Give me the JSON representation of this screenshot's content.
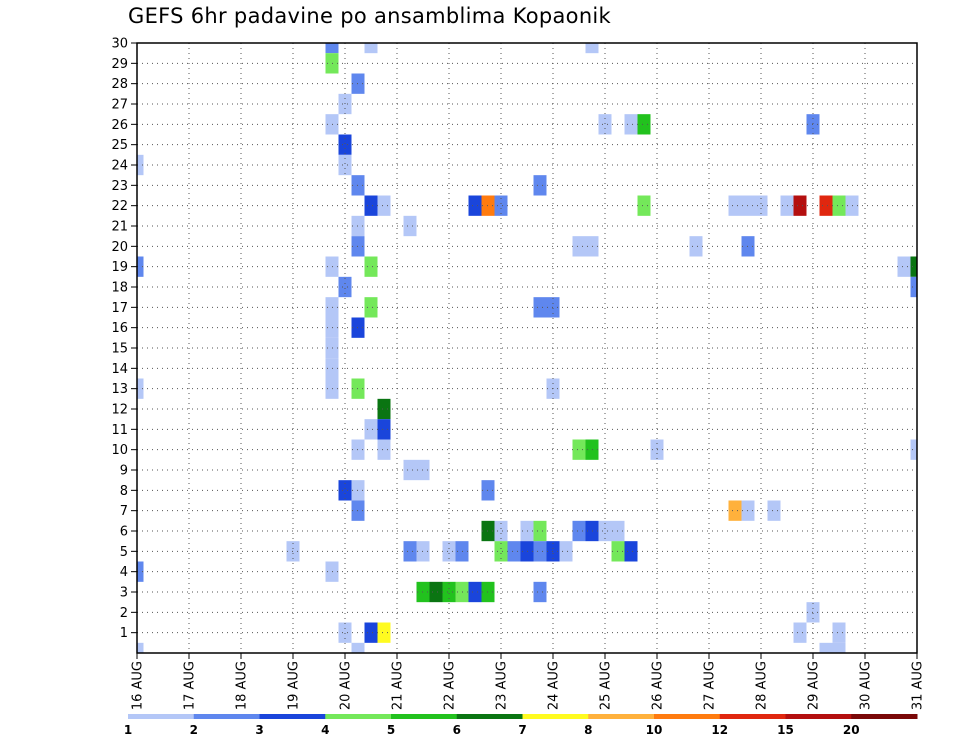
{
  "chart_data": {
    "type": "heatmap",
    "title": "GEFS 6hr padavine po ansamblima Kopaonik",
    "xlabel": "",
    "ylabel": "",
    "x_tick_labels": [
      "16 AUG",
      "17 AUG",
      "18 AUG",
      "19 AUG",
      "20 AUG",
      "21 AUG",
      "22 AUG",
      "23 AUG",
      "24 AUG",
      "25 AUG",
      "26 AUG",
      "27 AUG",
      "28 AUG",
      "29 AUG",
      "30 AUG",
      "31 AUG"
    ],
    "x_step": "6hr",
    "y_tick_labels": [
      1,
      2,
      3,
      4,
      5,
      6,
      7,
      8,
      9,
      10,
      11,
      12,
      13,
      14,
      15,
      16,
      17,
      18,
      19,
      20,
      21,
      22,
      23,
      24,
      25,
      26,
      27,
      28,
      29,
      30
    ],
    "ylim": [
      0,
      30
    ],
    "grid": true,
    "colorbar": {
      "position": "bottom",
      "labels": [
        "1",
        "2",
        "3",
        "4",
        "5",
        "6",
        "7",
        "8",
        "10",
        "12",
        "15",
        "20"
      ],
      "colors": [
        "#b4c7f7",
        "#5f87ee",
        "#1a45db",
        "#74e85a",
        "#22c21e",
        "#0a7512",
        "#fffb20",
        "#ffb13c",
        "#ff7b0f",
        "#e0270f",
        "#b40f0f",
        "#7a0808"
      ]
    },
    "cells": [
      {
        "date": "16 AUG",
        "step": 0,
        "member": 24,
        "color": "#b4c7f7"
      },
      {
        "date": "16 AUG",
        "step": 0,
        "member": 19,
        "color": "#5f87ee"
      },
      {
        "date": "16 AUG",
        "step": 0,
        "member": 13,
        "color": "#b4c7f7"
      },
      {
        "date": "16 AUG",
        "step": 0,
        "member": 4,
        "color": "#5f87ee"
      },
      {
        "date": "16 AUG",
        "step": 0,
        "member": 0,
        "color": "#b4c7f7"
      },
      {
        "date": "19 AUG",
        "step": 0,
        "member": 5,
        "color": "#b4c7f7"
      },
      {
        "date": "19 AUG",
        "step": 3,
        "member": 30,
        "color": "#5f87ee"
      },
      {
        "date": "19 AUG",
        "step": 3,
        "member": 26,
        "color": "#b4c7f7"
      },
      {
        "date": "19 AUG",
        "step": 3,
        "member": 19,
        "color": "#b4c7f7"
      },
      {
        "date": "19 AUG",
        "step": 3,
        "member": 17,
        "color": "#b4c7f7"
      },
      {
        "date": "19 AUG",
        "step": 3,
        "member": 16,
        "color": "#b4c7f7"
      },
      {
        "date": "19 AUG",
        "step": 3,
        "member": 15,
        "color": "#b4c7f7"
      },
      {
        "date": "19 AUG",
        "step": 3,
        "member": 14,
        "color": "#b4c7f7"
      },
      {
        "date": "19 AUG",
        "step": 3,
        "member": 13,
        "color": "#b4c7f7"
      },
      {
        "date": "19 AUG",
        "step": 3,
        "member": 4,
        "color": "#b4c7f7"
      },
      {
        "date": "19 AUG",
        "step": 3,
        "member": 29,
        "color": "#74e85a"
      },
      {
        "date": "20 AUG",
        "step": 0,
        "member": 27,
        "color": "#b4c7f7"
      },
      {
        "date": "20 AUG",
        "step": 0,
        "member": 25,
        "color": "#1a45db"
      },
      {
        "date": "20 AUG",
        "step": 0,
        "member": 24,
        "color": "#b4c7f7"
      },
      {
        "date": "20 AUG",
        "step": 0,
        "member": 18,
        "color": "#5f87ee"
      },
      {
        "date": "20 AUG",
        "step": 0,
        "member": 8,
        "color": "#1a45db"
      },
      {
        "date": "20 AUG",
        "step": 0,
        "member": 1,
        "color": "#b4c7f7"
      },
      {
        "date": "20 AUG",
        "step": 1,
        "member": 28,
        "color": "#5f87ee"
      },
      {
        "date": "20 AUG",
        "step": 1,
        "member": 23,
        "color": "#5f87ee"
      },
      {
        "date": "20 AUG",
        "step": 1,
        "member": 21,
        "color": "#b4c7f7"
      },
      {
        "date": "20 AUG",
        "step": 1,
        "member": 20,
        "color": "#5f87ee"
      },
      {
        "date": "20 AUG",
        "step": 1,
        "member": 16,
        "color": "#1a45db"
      },
      {
        "date": "20 AUG",
        "step": 1,
        "member": 13,
        "color": "#74e85a"
      },
      {
        "date": "20 AUG",
        "step": 1,
        "member": 10,
        "color": "#b4c7f7"
      },
      {
        "date": "20 AUG",
        "step": 1,
        "member": 8,
        "color": "#b4c7f7"
      },
      {
        "date": "20 AUG",
        "step": 1,
        "member": 7,
        "color": "#5f87ee"
      },
      {
        "date": "20 AUG",
        "step": 1,
        "member": 0,
        "color": "#b4c7f7"
      },
      {
        "date": "20 AUG",
        "step": 2,
        "member": 30,
        "color": "#b4c7f7"
      },
      {
        "date": "20 AUG",
        "step": 2,
        "member": 22,
        "color": "#1a45db"
      },
      {
        "date": "20 AUG",
        "step": 2,
        "member": 19,
        "color": "#74e85a"
      },
      {
        "date": "20 AUG",
        "step": 2,
        "member": 17,
        "color": "#74e85a"
      },
      {
        "date": "20 AUG",
        "step": 2,
        "member": 11,
        "color": "#b4c7f7"
      },
      {
        "date": "20 AUG",
        "step": 2,
        "member": 1,
        "color": "#1a45db"
      },
      {
        "date": "20 AUG",
        "step": 3,
        "member": 22,
        "color": "#b4c7f7"
      },
      {
        "date": "20 AUG",
        "step": 3,
        "member": 12,
        "color": "#0a7512"
      },
      {
        "date": "20 AUG",
        "step": 3,
        "member": 11,
        "color": "#1a45db"
      },
      {
        "date": "20 AUG",
        "step": 3,
        "member": 10,
        "color": "#b4c7f7"
      },
      {
        "date": "20 AUG",
        "step": 3,
        "member": 1,
        "color": "#fffb20"
      },
      {
        "date": "21 AUG",
        "step": 1,
        "member": 21,
        "color": "#b4c7f7"
      },
      {
        "date": "21 AUG",
        "step": 1,
        "member": 9,
        "color": "#b4c7f7"
      },
      {
        "date": "21 AUG",
        "step": 2,
        "member": 9,
        "color": "#b4c7f7"
      },
      {
        "date": "21 AUG",
        "step": 1,
        "member": 5,
        "color": "#5f87ee"
      },
      {
        "date": "21 AUG",
        "step": 2,
        "member": 5,
        "color": "#b4c7f7"
      },
      {
        "date": "21 AUG",
        "step": 2,
        "member": 3,
        "color": "#22c21e"
      },
      {
        "date": "21 AUG",
        "step": 3,
        "member": 3,
        "color": "#0a7512"
      },
      {
        "date": "22 AUG",
        "step": 0,
        "member": 3,
        "color": "#22c21e"
      },
      {
        "date": "22 AUG",
        "step": 1,
        "member": 3,
        "color": "#74e85a"
      },
      {
        "date": "22 AUG",
        "step": 2,
        "member": 3,
        "color": "#1a45db"
      },
      {
        "date": "22 AUG",
        "step": 3,
        "member": 3,
        "color": "#22c21e"
      },
      {
        "date": "22 AUG",
        "step": 0,
        "member": 5,
        "color": "#b4c7f7"
      },
      {
        "date": "22 AUG",
        "step": 1,
        "member": 5,
        "color": "#5f87ee"
      },
      {
        "date": "22 AUG",
        "step": 2,
        "member": 22,
        "color": "#1a45db"
      },
      {
        "date": "22 AUG",
        "step": 3,
        "member": 22,
        "color": "#ff7b0f"
      },
      {
        "date": "22 AUG",
        "step": 3,
        "member": 8,
        "color": "#5f87ee"
      },
      {
        "date": "22 AUG",
        "step": 3,
        "member": 6,
        "color": "#0a7512"
      },
      {
        "date": "23 AUG",
        "step": 0,
        "member": 22,
        "color": "#5f87ee"
      },
      {
        "date": "23 AUG",
        "step": 0,
        "member": 6,
        "color": "#b4c7f7"
      },
      {
        "date": "23 AUG",
        "step": 0,
        "member": 5,
        "color": "#74e85a"
      },
      {
        "date": "23 AUG",
        "step": 1,
        "member": 5,
        "color": "#5f87ee"
      },
      {
        "date": "23 AUG",
        "step": 2,
        "member": 6,
        "color": "#b4c7f7"
      },
      {
        "date": "23 AUG",
        "step": 2,
        "member": 5,
        "color": "#1a45db"
      },
      {
        "date": "23 AUG",
        "step": 3,
        "member": 23,
        "color": "#5f87ee"
      },
      {
        "date": "23 AUG",
        "step": 3,
        "member": 17,
        "color": "#5f87ee"
      },
      {
        "date": "23 AUG",
        "step": 3,
        "member": 6,
        "color": "#74e85a"
      },
      {
        "date": "23 AUG",
        "step": 3,
        "member": 5,
        "color": "#5f87ee"
      },
      {
        "date": "23 AUG",
        "step": 3,
        "member": 3,
        "color": "#5f87ee"
      },
      {
        "date": "24 AUG",
        "step": 0,
        "member": 17,
        "color": "#5f87ee"
      },
      {
        "date": "24 AUG",
        "step": 0,
        "member": 13,
        "color": "#b4c7f7"
      },
      {
        "date": "24 AUG",
        "step": 0,
        "member": 5,
        "color": "#1a45db"
      },
      {
        "date": "24 AUG",
        "step": 1,
        "member": 5,
        "color": "#b4c7f7"
      },
      {
        "date": "24 AUG",
        "step": 2,
        "member": 20,
        "color": "#b4c7f7"
      },
      {
        "date": "24 AUG",
        "step": 2,
        "member": 10,
        "color": "#74e85a"
      },
      {
        "date": "24 AUG",
        "step": 2,
        "member": 6,
        "color": "#5f87ee"
      },
      {
        "date": "24 AUG",
        "step": 3,
        "member": 30,
        "color": "#b4c7f7"
      },
      {
        "date": "24 AUG",
        "step": 3,
        "member": 20,
        "color": "#b4c7f7"
      },
      {
        "date": "24 AUG",
        "step": 3,
        "member": 10,
        "color": "#22c21e"
      },
      {
        "date": "24 AUG",
        "step": 3,
        "member": 6,
        "color": "#1a45db"
      },
      {
        "date": "25 AUG",
        "step": 0,
        "member": 26,
        "color": "#b4c7f7"
      },
      {
        "date": "25 AUG",
        "step": 0,
        "member": 6,
        "color": "#b4c7f7"
      },
      {
        "date": "25 AUG",
        "step": 1,
        "member": 6,
        "color": "#b4c7f7"
      },
      {
        "date": "25 AUG",
        "step": 1,
        "member": 5,
        "color": "#74e85a"
      },
      {
        "date": "25 AUG",
        "step": 2,
        "member": 26,
        "color": "#b4c7f7"
      },
      {
        "date": "25 AUG",
        "step": 2,
        "member": 5,
        "color": "#1a45db"
      },
      {
        "date": "25 AUG",
        "step": 3,
        "member": 26,
        "color": "#22c21e"
      },
      {
        "date": "25 AUG",
        "step": 3,
        "member": 22,
        "color": "#74e85a"
      },
      {
        "date": "26 AUG",
        "step": 0,
        "member": 10,
        "color": "#b4c7f7"
      },
      {
        "date": "26 AUG",
        "step": 3,
        "member": 20,
        "color": "#b4c7f7"
      },
      {
        "date": "27 AUG",
        "step": 2,
        "member": 7,
        "color": "#ffb13c"
      },
      {
        "date": "27 AUG",
        "step": 2,
        "member": 22,
        "color": "#b4c7f7"
      },
      {
        "date": "27 AUG",
        "step": 3,
        "member": 22,
        "color": "#b4c7f7"
      },
      {
        "date": "27 AUG",
        "step": 3,
        "member": 7,
        "color": "#b4c7f7"
      },
      {
        "date": "27 AUG",
        "step": 3,
        "member": 20,
        "color": "#5f87ee"
      },
      {
        "date": "28 AUG",
        "step": 0,
        "member": 22,
        "color": "#b4c7f7"
      },
      {
        "date": "28 AUG",
        "step": 1,
        "member": 7,
        "color": "#b4c7f7"
      },
      {
        "date": "28 AUG",
        "step": 2,
        "member": 22,
        "color": "#b4c7f7"
      },
      {
        "date": "28 AUG",
        "step": 3,
        "member": 22,
        "color": "#b40f0f"
      },
      {
        "date": "28 AUG",
        "step": 3,
        "member": 1,
        "color": "#b4c7f7"
      },
      {
        "date": "29 AUG",
        "step": 0,
        "member": 26,
        "color": "#5f87ee"
      },
      {
        "date": "29 AUG",
        "step": 0,
        "member": 2,
        "color": "#b4c7f7"
      },
      {
        "date": "29 AUG",
        "step": 1,
        "member": 22,
        "color": "#e0270f"
      },
      {
        "date": "29 AUG",
        "step": 1,
        "member": 0,
        "color": "#b4c7f7"
      },
      {
        "date": "29 AUG",
        "step": 2,
        "member": 22,
        "color": "#74e85a"
      },
      {
        "date": "29 AUG",
        "step": 2,
        "member": 1,
        "color": "#b4c7f7"
      },
      {
        "date": "29 AUG",
        "step": 2,
        "member": 0,
        "color": "#b4c7f7"
      },
      {
        "date": "29 AUG",
        "step": 3,
        "member": 22,
        "color": "#b4c7f7"
      },
      {
        "date": "30 AUG",
        "step": 3,
        "member": 19,
        "color": "#b4c7f7"
      },
      {
        "date": "31 AUG",
        "step": 0,
        "member": 19,
        "color": "#0a7512"
      },
      {
        "date": "31 AUG",
        "step": 0,
        "member": 18,
        "color": "#5f87ee"
      },
      {
        "date": "31 AUG",
        "step": 0,
        "member": 10,
        "color": "#b4c7f7"
      }
    ]
  }
}
